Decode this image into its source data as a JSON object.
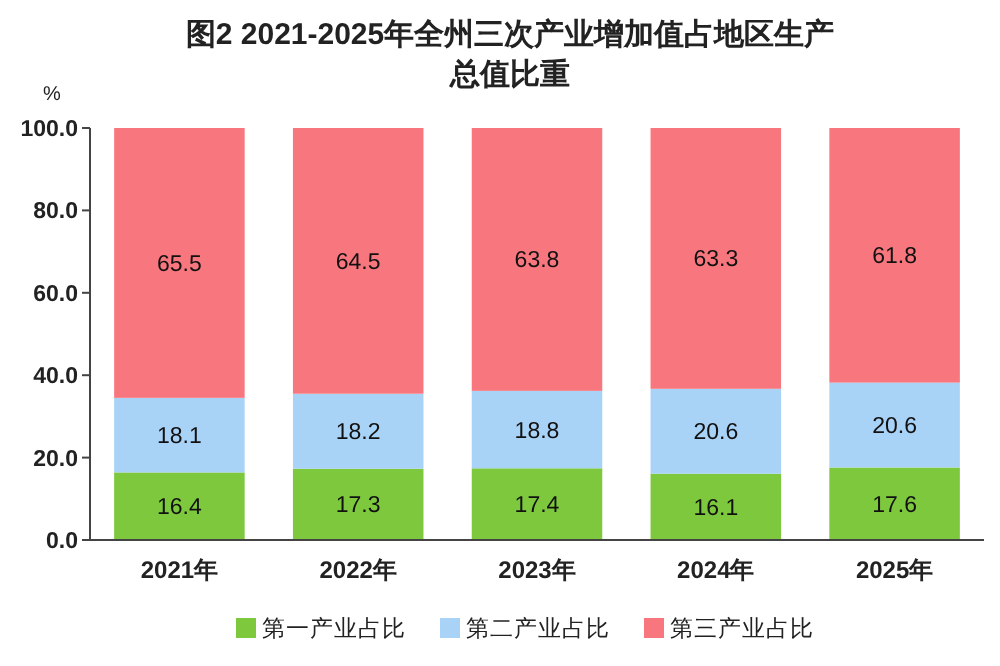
{
  "chart_data": {
    "type": "bar",
    "title": "图2 2021-2025年全州三次产业增加值占地区生产总值比重",
    "ylabel": "%",
    "categories": [
      "2021年",
      "2022年",
      "2023年",
      "2024年",
      "2025年"
    ],
    "stacked": true,
    "data_labels": true,
    "legend": "bottom",
    "ylim": [
      0,
      100
    ],
    "yticks": [
      {
        "value": 0,
        "label": "0.0"
      },
      {
        "value": 20,
        "label": "20.0"
      },
      {
        "value": 40,
        "label": "40.0"
      },
      {
        "value": 60,
        "label": "60.0"
      },
      {
        "value": 80,
        "label": "80.0"
      },
      {
        "value": 100,
        "label": "100.0"
      }
    ],
    "series": [
      {
        "name": "第一产业占比",
        "color": "#7ec83e",
        "values": [
          16.4,
          17.3,
          17.4,
          16.1,
          17.6
        ]
      },
      {
        "name": "第二产业占比",
        "color": "#a9d2f7",
        "values": [
          18.1,
          18.2,
          18.8,
          20.6,
          20.6
        ]
      },
      {
        "name": "第三产业占比",
        "color": "#f8777e",
        "values": [
          65.5,
          64.5,
          63.8,
          63.3,
          61.8
        ]
      }
    ]
  }
}
